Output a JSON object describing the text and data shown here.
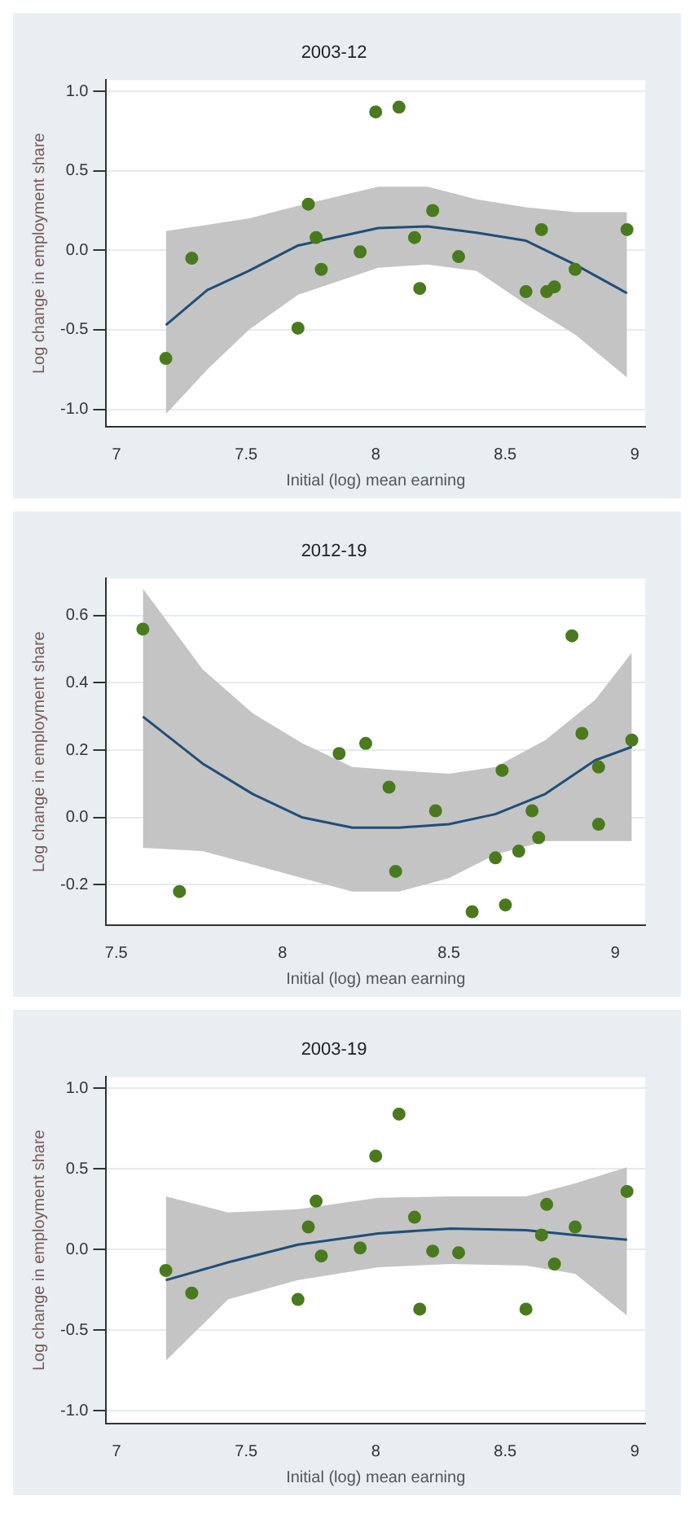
{
  "chart_data": [
    {
      "type": "scatter",
      "title": "2003-12",
      "xlabel": "Initial (log) mean earning",
      "ylabel": "Log change in employment share",
      "xlim": [
        6.96,
        9.04
      ],
      "ylim": [
        -1.11,
        1.07
      ],
      "xticks": [
        7,
        7.5,
        8,
        8.5,
        9
      ],
      "yticks": [
        {
          "value": -1,
          "label": "-1.0"
        },
        -0.5,
        {
          "value": 0,
          "label": "0.0"
        },
        0.5,
        {
          "value": 1,
          "label": "1.0"
        }
      ],
      "grid": "y",
      "series": [
        {
          "type": "line",
          "color": "#1f4e79",
          "marker": "none",
          "x": [
            7.19,
            7.35,
            7.51,
            7.7,
            8.01,
            8.2,
            8.39,
            8.58,
            8.77,
            8.97
          ],
          "values": [
            -0.47,
            -0.25,
            -0.13,
            0.03,
            0.14,
            0.15,
            0.11,
            0.06,
            -0.09,
            -0.27
          ],
          "upper": [
            0.12,
            0.16,
            0.2,
            0.28,
            0.4,
            0.4,
            0.32,
            0.27,
            0.24,
            0.24
          ],
          "lower": [
            -1.03,
            -0.75,
            -0.5,
            -0.28,
            -0.11,
            -0.09,
            -0.13,
            -0.34,
            -0.53,
            -0.8
          ]
        },
        {
          "type": "scatter",
          "color": "#4a7a1e",
          "marker": "circle",
          "x": [
            7.19,
            7.29,
            7.7,
            7.74,
            7.77,
            7.79,
            7.94,
            8.0,
            8.09,
            8.15,
            8.17,
            8.22,
            8.32,
            8.58,
            8.64,
            8.66,
            8.69,
            8.77,
            8.97
          ],
          "values": [
            -0.68,
            -0.05,
            -0.49,
            0.29,
            0.08,
            -0.12,
            -0.01,
            0.87,
            0.9,
            0.08,
            -0.24,
            0.25,
            -0.04,
            -0.26,
            0.13,
            -0.26,
            -0.23,
            -0.12,
            0.13
          ]
        }
      ]
    },
    {
      "type": "scatter",
      "title": "2012-19",
      "xlabel": "Initial (log) mean earning",
      "ylabel": "Log change in employment share",
      "xlim": [
        7.47,
        9.09
      ],
      "ylim": [
        -0.32,
        0.71
      ],
      "xticks": [
        7.5,
        8,
        8.5,
        9
      ],
      "yticks": [
        -0.2,
        {
          "value": 0,
          "label": "0.0"
        },
        0.2,
        0.4,
        0.6
      ],
      "grid": "y",
      "series": [
        {
          "type": "line",
          "color": "#1f4e79",
          "marker": "none",
          "x": [
            7.58,
            7.76,
            7.91,
            8.06,
            8.21,
            8.35,
            8.5,
            8.64,
            8.79,
            8.94,
            9.05
          ],
          "values": [
            0.3,
            0.16,
            0.07,
            0.0,
            -0.03,
            -0.03,
            -0.02,
            0.01,
            0.07,
            0.17,
            0.21
          ],
          "upper": [
            0.68,
            0.44,
            0.31,
            0.22,
            0.15,
            0.14,
            0.13,
            0.15,
            0.23,
            0.35,
            0.49
          ],
          "lower": [
            -0.09,
            -0.1,
            -0.14,
            -0.18,
            -0.22,
            -0.22,
            -0.18,
            -0.11,
            -0.07,
            -0.07,
            -0.07
          ]
        },
        {
          "type": "scatter",
          "color": "#4a7a1e",
          "marker": "circle",
          "x": [
            7.58,
            7.69,
            8.17,
            8.25,
            8.32,
            8.34,
            8.46,
            8.57,
            8.64,
            8.66,
            8.67,
            8.71,
            8.75,
            8.77,
            8.87,
            8.9,
            8.95,
            8.95,
            9.05
          ],
          "values": [
            0.56,
            -0.22,
            0.19,
            0.22,
            0.09,
            -0.16,
            0.02,
            -0.28,
            -0.12,
            0.14,
            -0.26,
            -0.1,
            0.02,
            -0.06,
            0.54,
            0.25,
            0.15,
            -0.02,
            0.23
          ]
        }
      ]
    },
    {
      "type": "scatter",
      "title": "2003-19",
      "xlabel": "Initial (log) mean earning",
      "ylabel": "Log change in employment share",
      "xlim": [
        6.96,
        9.04
      ],
      "ylim": [
        -1.08,
        1.07
      ],
      "xticks": [
        7,
        7.5,
        8,
        8.5,
        9
      ],
      "yticks": [
        {
          "value": -1,
          "label": "-1.0"
        },
        -0.5,
        {
          "value": 0,
          "label": "0.0"
        },
        0.5,
        {
          "value": 1,
          "label": "1.0"
        }
      ],
      "grid": "y",
      "series": [
        {
          "type": "line",
          "color": "#1f4e79",
          "marker": "none",
          "x": [
            7.19,
            7.43,
            7.7,
            8.01,
            8.29,
            8.58,
            8.77,
            8.97
          ],
          "values": [
            -0.19,
            -0.08,
            0.03,
            0.1,
            0.13,
            0.12,
            0.09,
            0.06
          ],
          "upper": [
            0.33,
            0.23,
            0.25,
            0.32,
            0.33,
            0.33,
            0.41,
            0.51
          ],
          "lower": [
            -0.69,
            -0.31,
            -0.19,
            -0.11,
            -0.09,
            -0.1,
            -0.15,
            -0.41
          ]
        },
        {
          "type": "scatter",
          "color": "#4a7a1e",
          "marker": "circle",
          "x": [
            7.19,
            7.29,
            7.7,
            7.74,
            7.77,
            7.79,
            7.94,
            8.0,
            8.09,
            8.15,
            8.17,
            8.22,
            8.32,
            8.58,
            8.64,
            8.66,
            8.69,
            8.77,
            8.97
          ],
          "values": [
            -0.13,
            -0.27,
            -0.31,
            0.14,
            0.3,
            -0.04,
            0.01,
            0.58,
            0.84,
            0.2,
            -0.37,
            -0.01,
            -0.02,
            -0.37,
            0.09,
            0.28,
            -0.09,
            0.14,
            0.36
          ]
        }
      ]
    }
  ]
}
